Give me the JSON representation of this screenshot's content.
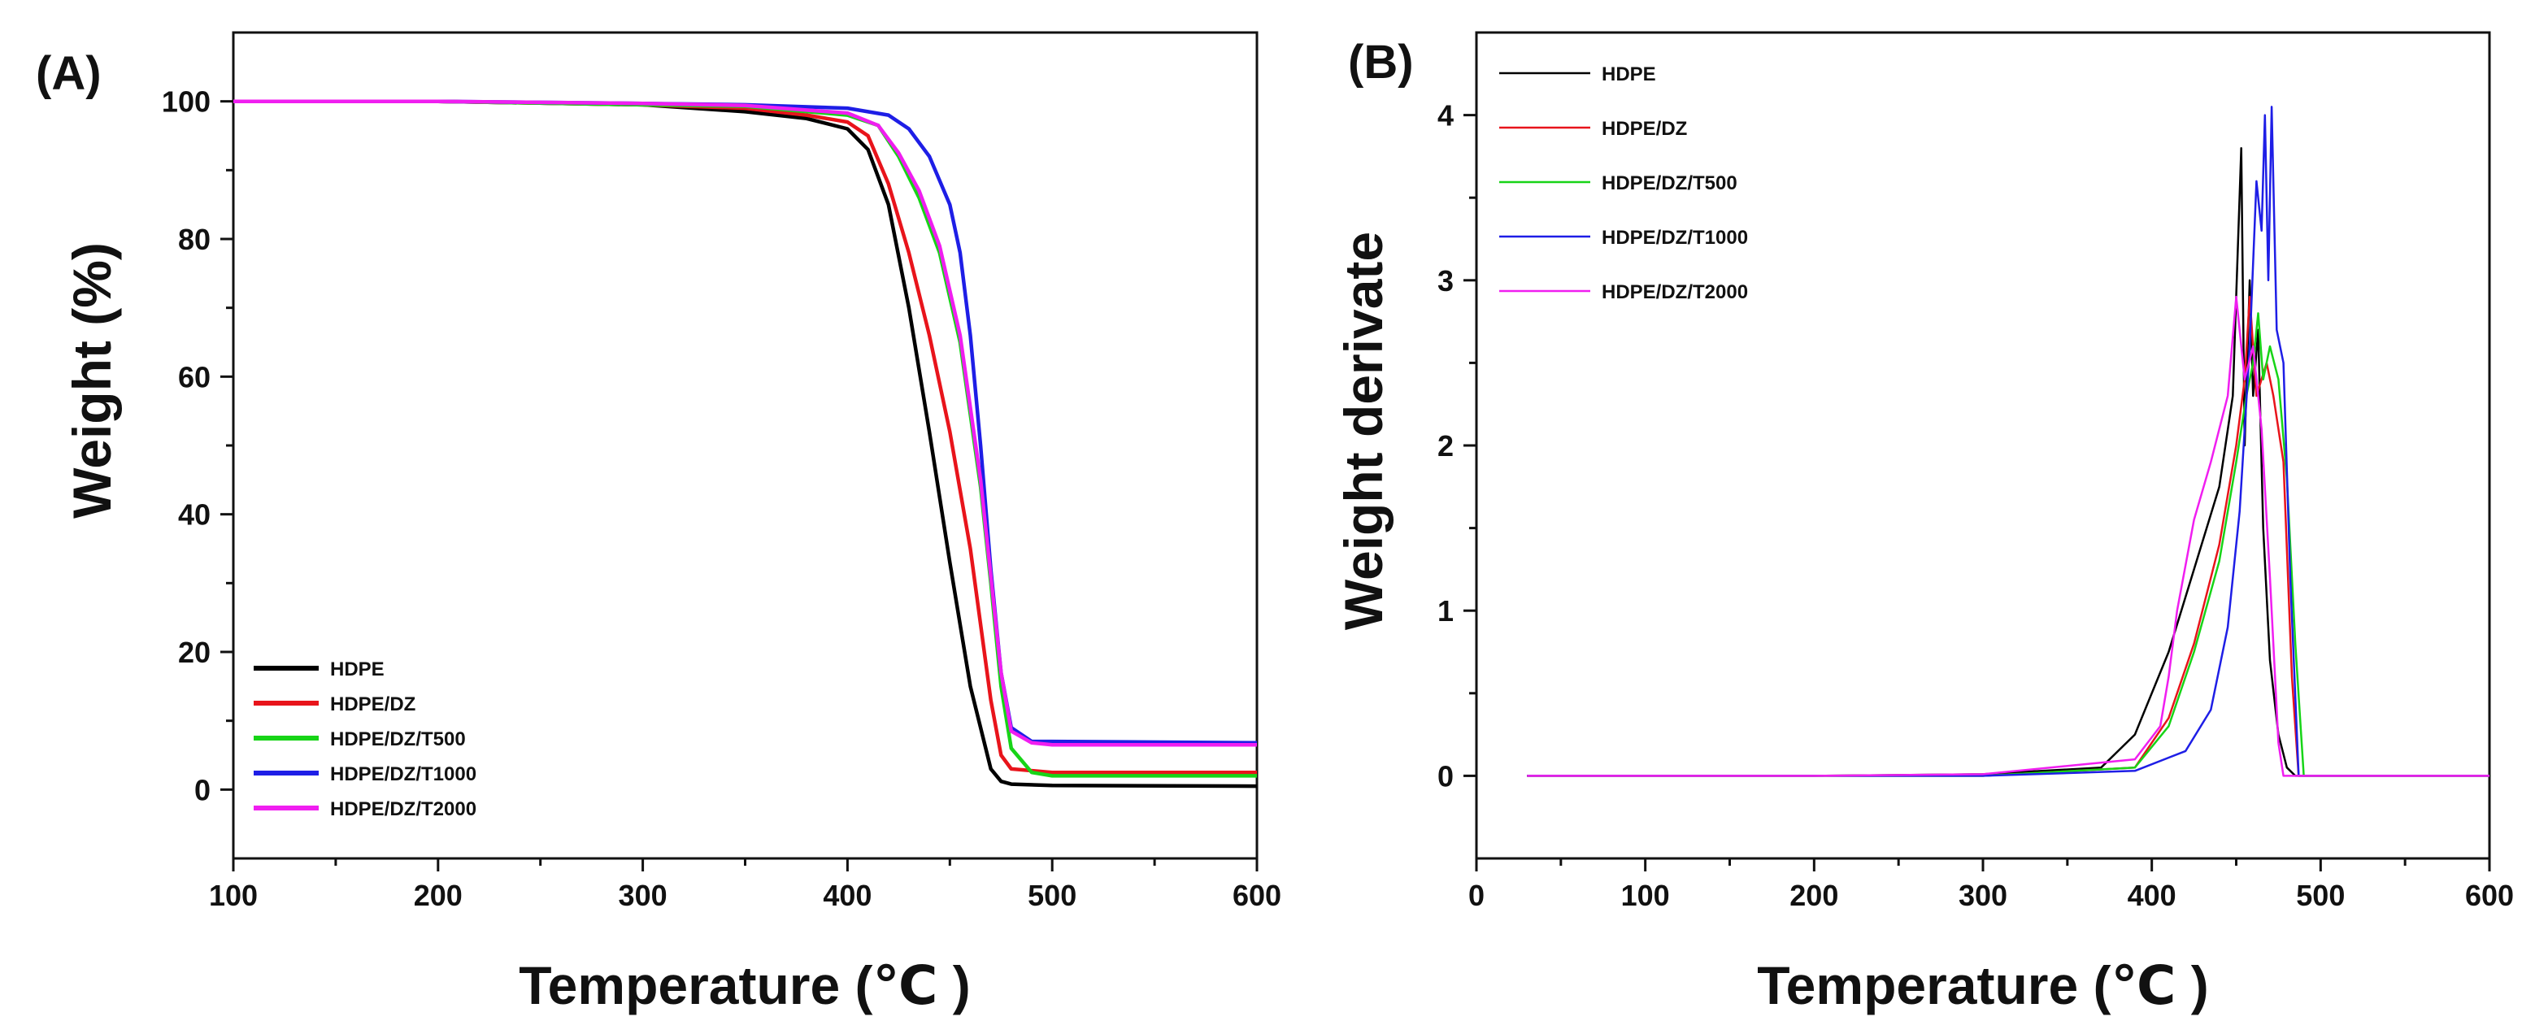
{
  "figure": {
    "panels": [
      "(A)",
      "(B)"
    ]
  },
  "chart_data": [
    {
      "type": "line",
      "panel_label": "(A)",
      "xlabel": "Temperature (℃ )",
      "ylabel": "Weight (%)",
      "xlim": [
        100,
        600
      ],
      "ylim": [
        -10,
        110
      ],
      "xticks": [
        100,
        200,
        300,
        400,
        500,
        600
      ],
      "yticks": [
        0,
        20,
        40,
        60,
        80,
        100
      ],
      "legend_position": "bottom-left",
      "grid": false,
      "series": [
        {
          "name": "HDPE",
          "color": "#000000",
          "x": [
            100,
            200,
            300,
            350,
            380,
            400,
            410,
            420,
            430,
            440,
            450,
            460,
            470,
            475,
            480,
            500,
            600
          ],
          "y": [
            100,
            100,
            99.5,
            98.5,
            97.5,
            96,
            93,
            85,
            70,
            52,
            33,
            15,
            3,
            1.2,
            0.8,
            0.6,
            0.5
          ]
        },
        {
          "name": "HDPE/DZ",
          "color": "#e8141b",
          "x": [
            100,
            200,
            300,
            350,
            380,
            400,
            410,
            420,
            430,
            440,
            450,
            460,
            470,
            475,
            480,
            500,
            600
          ],
          "y": [
            100,
            100,
            99.5,
            99,
            98,
            97,
            95,
            88,
            78,
            66,
            52,
            35,
            13,
            5,
            3,
            2.5,
            2.5
          ]
        },
        {
          "name": "HDPE/DZ/T500",
          "color": "#17d417",
          "x": [
            100,
            200,
            300,
            350,
            400,
            415,
            425,
            435,
            445,
            455,
            465,
            470,
            475,
            480,
            490,
            500,
            600
          ],
          "y": [
            100,
            100,
            99.5,
            99.3,
            98,
            96.5,
            92,
            86,
            78,
            65,
            44,
            30,
            15,
            6,
            2.5,
            2,
            2
          ]
        },
        {
          "name": "HDPE/DZ/T1000",
          "color": "#1e1ee6",
          "x": [
            100,
            200,
            300,
            350,
            400,
            420,
            430,
            440,
            450,
            455,
            460,
            465,
            470,
            475,
            480,
            490,
            500,
            600
          ],
          "y": [
            100,
            100,
            99.7,
            99.5,
            99,
            98,
            96,
            92,
            85,
            78,
            66,
            50,
            32,
            17,
            9,
            7,
            7,
            6.8
          ]
        },
        {
          "name": "HDPE/DZ/T2000",
          "color": "#f01ef0",
          "x": [
            100,
            200,
            300,
            350,
            400,
            415,
            425,
            435,
            445,
            455,
            465,
            470,
            475,
            480,
            490,
            500,
            600
          ],
          "y": [
            100,
            100,
            99.7,
            99.4,
            98.3,
            96.5,
            92.5,
            87,
            79,
            66,
            45,
            31,
            17,
            8.5,
            6.8,
            6.5,
            6.5
          ]
        }
      ]
    },
    {
      "type": "line",
      "panel_label": "(B)",
      "xlabel": "Temperature (℃ )",
      "ylabel": "Weight derivate",
      "xlim": [
        0,
        600
      ],
      "ylim": [
        -0.5,
        4.5
      ],
      "xticks": [
        0,
        100,
        200,
        300,
        400,
        500,
        600
      ],
      "yticks": [
        0,
        1,
        2,
        3,
        4
      ],
      "legend_position": "top-left",
      "grid": false,
      "series": [
        {
          "name": "HDPE",
          "color": "#000000",
          "x": [
            30,
            100,
            200,
            300,
            370,
            390,
            410,
            425,
            440,
            448,
            453,
            455,
            458,
            460,
            463,
            466,
            470,
            475,
            480,
            485,
            600
          ],
          "y": [
            0,
            0,
            0,
            0.01,
            0.05,
            0.25,
            0.75,
            1.25,
            1.75,
            2.3,
            3.8,
            2.0,
            3.0,
            2.3,
            2.7,
            1.5,
            0.7,
            0.25,
            0.05,
            0,
            0
          ]
        },
        {
          "name": "HDPE/DZ",
          "color": "#e8141b",
          "x": [
            30,
            100,
            200,
            300,
            390,
            410,
            425,
            440,
            450,
            455,
            458,
            462,
            468,
            472,
            478,
            483,
            487,
            600
          ],
          "y": [
            0,
            0,
            0,
            0,
            0.05,
            0.35,
            0.8,
            1.4,
            2.0,
            2.4,
            2.9,
            2.3,
            2.5,
            2.3,
            1.9,
            0.6,
            0,
            0
          ]
        },
        {
          "name": "HDPE/DZ/T500",
          "color": "#17d417",
          "x": [
            30,
            100,
            200,
            300,
            390,
            410,
            425,
            440,
            450,
            456,
            460,
            463,
            466,
            470,
            475,
            480,
            485,
            490,
            600
          ],
          "y": [
            0,
            0,
            0,
            0,
            0.05,
            0.3,
            0.75,
            1.3,
            1.9,
            2.3,
            2.5,
            2.8,
            2.4,
            2.6,
            2.4,
            1.8,
            0.8,
            0,
            0
          ]
        },
        {
          "name": "HDPE/DZ/T1000",
          "color": "#1e1ee6",
          "x": [
            30,
            100,
            200,
            300,
            390,
            420,
            435,
            445,
            452,
            458,
            462,
            465,
            467,
            469,
            471,
            474,
            478,
            482,
            487,
            600
          ],
          "y": [
            0,
            0,
            0,
            0,
            0.03,
            0.15,
            0.4,
            0.9,
            1.6,
            2.6,
            3.6,
            3.3,
            4.0,
            3.0,
            4.05,
            2.7,
            2.5,
            1.2,
            0,
            0
          ]
        },
        {
          "name": "HDPE/DZ/T2000",
          "color": "#f01ef0",
          "x": [
            30,
            100,
            200,
            300,
            390,
            405,
            410,
            415,
            425,
            435,
            445,
            450,
            455,
            460,
            465,
            470,
            475,
            478,
            600
          ],
          "y": [
            0,
            0,
            0,
            0.01,
            0.1,
            0.3,
            0.6,
            1.0,
            1.55,
            1.9,
            2.3,
            2.9,
            2.4,
            2.6,
            2.1,
            1.2,
            0.2,
            0,
            0
          ]
        }
      ]
    }
  ]
}
